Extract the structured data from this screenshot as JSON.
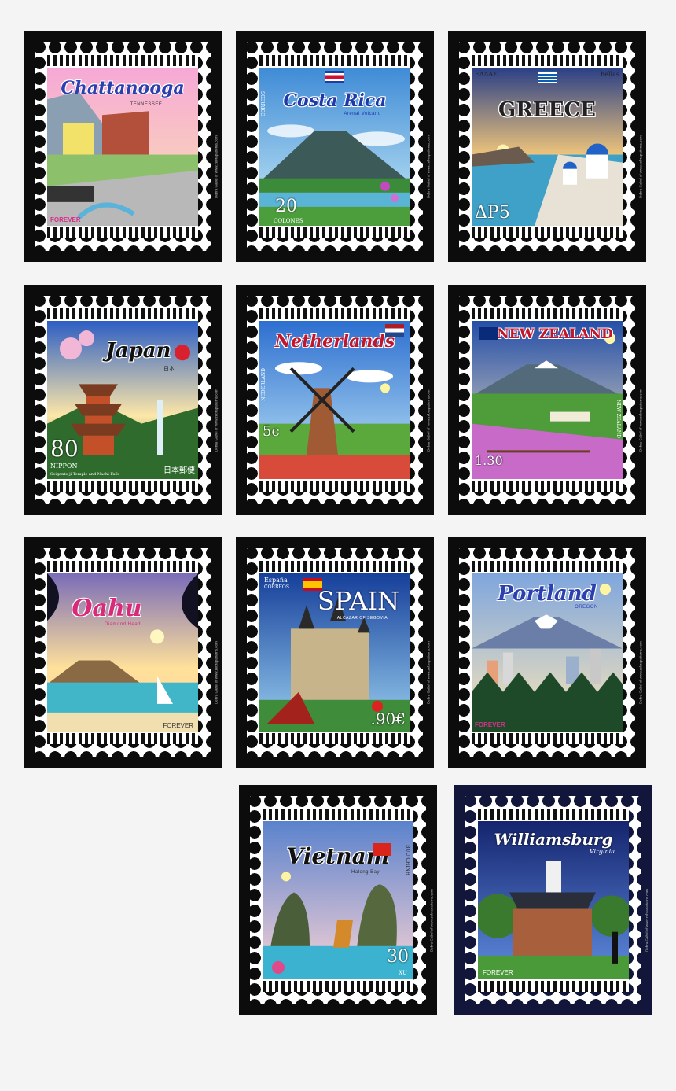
{
  "stamps": [
    {
      "id": "chattanooga",
      "title": "Chattanooga",
      "subtitle": "TENNESSEE",
      "value": "FOREVER",
      "title_color": "#2b3fae",
      "sky": [
        "#f6a8d6",
        "#fbe4b0"
      ]
    },
    {
      "id": "costa-rica",
      "title": "Costa Rica",
      "subtitle": "Arenal Volcano",
      "side": "CORREOS",
      "value": "20",
      "value_unit": "COLONES",
      "title_color": "#1f39a8",
      "sky": [
        "#3f8bd6",
        "#c9ecf7"
      ]
    },
    {
      "id": "greece",
      "title": "GREECE",
      "left_label": "ΕΛΛΑΣ",
      "right_label": "hellas",
      "value": "ΔΡ5",
      "title_color": "#222222",
      "sky": [
        "#2a3f86",
        "#ffd07a"
      ]
    },
    {
      "id": "japan",
      "title": "Japan",
      "subtitle": "日本",
      "value": "80",
      "value_label": "NIPPON",
      "caption": "Seiganto-ji Temple and Nachi Falls",
      "kana": "日本郵便",
      "title_color": "#111111",
      "sky": [
        "#2d5ec4",
        "#fde7a8"
      ]
    },
    {
      "id": "netherlands",
      "title": "Netherlands",
      "side": "NEDERLAND",
      "value": "5c",
      "title_color": "#c0162e",
      "sky": [
        "#2d6fd0",
        "#bfe6f7"
      ]
    },
    {
      "id": "new-zealand",
      "title": "NEW ZEALAND",
      "side": "NEW ZEALAND",
      "value": "1.30",
      "title_color": "#c0162e",
      "sky": [
        "#244ea8",
        "#fbe9c1"
      ]
    },
    {
      "id": "oahu",
      "title": "Oahu",
      "subtitle": "Diamond Head",
      "value": "FOREVER",
      "title_color": "#d82a7a",
      "sky": [
        "#7a6cb8",
        "#ffe19a"
      ]
    },
    {
      "id": "spain",
      "title": "SPAIN",
      "left_label": "España",
      "left_label2": "CORREOS",
      "subtitle": "ALCAZAR OF SEGOVIA",
      "value": ".90€",
      "title_color": "#ffffff",
      "sky": [
        "#163f9a",
        "#9ad0f0"
      ]
    },
    {
      "id": "portland",
      "title": "Portland",
      "subtitle": "OREGON",
      "value": "FOREVER",
      "title_color": "#2b3fae",
      "sky": [
        "#7fa6dd",
        "#fbe7b9"
      ]
    },
    {
      "id": "vietnam",
      "title": "Vietnam",
      "subtitle": "Halong Bay",
      "side": "BUU CHINH",
      "value": "30",
      "value_unit": "XU",
      "title_color": "#111111",
      "sky": [
        "#5a82cc",
        "#fbd3d6"
      ]
    },
    {
      "id": "williamsburg",
      "title": "Williamsburg",
      "subtitle": "Virginia",
      "value": "FOREVER",
      "title_color": "#ffffff",
      "sky": [
        "#15246e",
        "#5f8de0"
      ]
    }
  ],
  "credit": "Debra Gabel of www.zebrapatterns.com"
}
